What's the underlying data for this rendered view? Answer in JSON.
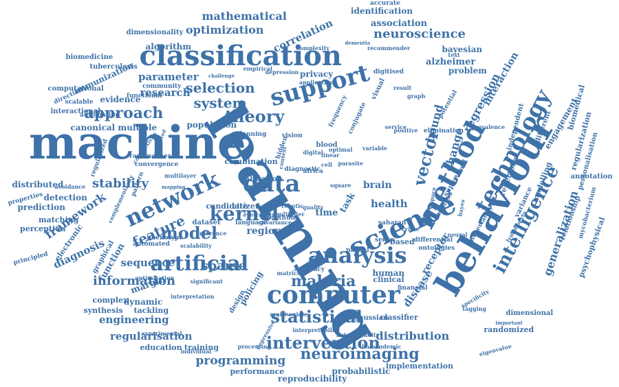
{
  "cloud": {
    "accent": "#3e72a8",
    "words": [
      {
        "text": "learning"
      },
      {
        "text": "machine"
      },
      {
        "text": "classification"
      },
      {
        "text": "behaviour"
      },
      {
        "text": "method"
      },
      {
        "text": "science"
      },
      {
        "text": "support"
      },
      {
        "text": "network"
      },
      {
        "text": "computer"
      },
      {
        "text": "analysis"
      },
      {
        "text": "artificial"
      },
      {
        "text": "technology"
      },
      {
        "text": "intelligence"
      },
      {
        "text": "data"
      },
      {
        "text": "kernel"
      },
      {
        "text": "intervention"
      },
      {
        "text": "statistical"
      },
      {
        "text": "malaria"
      },
      {
        "text": "vector"
      },
      {
        "text": "theory"
      },
      {
        "text": "neuroimaging"
      },
      {
        "text": "model"
      },
      {
        "text": "approach"
      },
      {
        "text": "selection"
      },
      {
        "text": "system"
      },
      {
        "text": "feature"
      },
      {
        "text": "information"
      },
      {
        "text": "mathematical"
      },
      {
        "text": "optimization"
      },
      {
        "text": "neuroscience"
      },
      {
        "text": "framework"
      },
      {
        "text": "regression"
      },
      {
        "text": "stability"
      },
      {
        "text": "sparse"
      },
      {
        "text": "generalization"
      },
      {
        "text": "programming"
      },
      {
        "text": "distribution"
      },
      {
        "text": "regularisation"
      },
      {
        "text": "engineering"
      },
      {
        "text": "correlation"
      },
      {
        "text": "diagnosis"
      },
      {
        "text": "change"
      },
      {
        "text": "bound"
      },
      {
        "text": "disease"
      },
      {
        "text": "health"
      },
      {
        "text": "receptor"
      },
      {
        "text": "interaction"
      },
      {
        "text": "sequence"
      },
      {
        "text": "parameter"
      },
      {
        "text": "research"
      },
      {
        "text": "association"
      },
      {
        "text": "identification"
      },
      {
        "text": "alzheimer"
      },
      {
        "text": "bayesian"
      },
      {
        "text": "problem"
      },
      {
        "text": "algorithm"
      },
      {
        "text": "immunization"
      },
      {
        "text": "evidence"
      },
      {
        "text": "canonical"
      },
      {
        "text": "multiple"
      },
      {
        "text": "distributed"
      },
      {
        "text": "detection"
      },
      {
        "text": "prediction"
      },
      {
        "text": "matching"
      },
      {
        "text": "perception"
      },
      {
        "text": "electronic"
      },
      {
        "text": "function"
      },
      {
        "text": "graphical"
      },
      {
        "text": "dynamic"
      },
      {
        "text": "complex"
      },
      {
        "text": "synthesis"
      },
      {
        "text": "tackling"
      },
      {
        "text": "margin"
      },
      {
        "text": "education"
      },
      {
        "text": "training"
      },
      {
        "text": "reproducibility"
      },
      {
        "text": "performance"
      },
      {
        "text": "probabilistic"
      },
      {
        "text": "implementation"
      },
      {
        "text": "randomized"
      },
      {
        "text": "dimensional"
      },
      {
        "text": "gaussian"
      },
      {
        "text": "classifier"
      },
      {
        "text": "human"
      },
      {
        "text": "clinical"
      },
      {
        "text": "based"
      },
      {
        "text": "modelling"
      },
      {
        "text": "engagement"
      },
      {
        "text": "biomedical"
      },
      {
        "text": "regularization"
      },
      {
        "text": "personalisation"
      },
      {
        "text": "annotation"
      },
      {
        "text": "relationship"
      },
      {
        "text": "psychophysical"
      },
      {
        "text": "mycobacterium"
      },
      {
        "text": "repertoire"
      },
      {
        "text": "independent"
      },
      {
        "text": "supervised"
      },
      {
        "text": "fairness"
      },
      {
        "text": "different"
      },
      {
        "text": "brain"
      },
      {
        "text": "time"
      },
      {
        "text": "task"
      },
      {
        "text": "region"
      },
      {
        "text": "pattern"
      },
      {
        "text": "dataset"
      },
      {
        "text": "privacy"
      },
      {
        "text": "accuracy"
      },
      {
        "text": "matrice"
      },
      {
        "text": "policing"
      },
      {
        "text": "design"
      },
      {
        "text": "accurate"
      },
      {
        "text": "dimensionality"
      },
      {
        "text": "tuberculosis"
      },
      {
        "text": "biomedicine"
      },
      {
        "text": "computational"
      },
      {
        "text": "interactional"
      },
      {
        "text": "automation"
      },
      {
        "text": "functional"
      },
      {
        "text": "scalable"
      },
      {
        "text": "community"
      },
      {
        "text": "complexity"
      },
      {
        "text": "recommender"
      },
      {
        "text": "dementia"
      },
      {
        "text": "digitised"
      },
      {
        "text": "application"
      },
      {
        "text": "depression"
      },
      {
        "text": "empirical"
      },
      {
        "text": "frequency"
      },
      {
        "text": "conjugate"
      },
      {
        "text": "visual"
      },
      {
        "text": "neural"
      },
      {
        "text": "variance"
      },
      {
        "text": "uncertainty"
      },
      {
        "text": "lymphocyte"
      },
      {
        "text": "differential"
      },
      {
        "text": "ontologies"
      },
      {
        "text": "financial"
      },
      {
        "text": "tagging"
      },
      {
        "text": "important"
      },
      {
        "text": "eigenvalue"
      },
      {
        "text": "holoendemic"
      },
      {
        "text": "interpretability"
      },
      {
        "text": "heterogeneity"
      },
      {
        "text": "multivariate"
      },
      {
        "text": "depressive"
      },
      {
        "text": "processing"
      },
      {
        "text": "individual"
      },
      {
        "text": "experimental"
      },
      {
        "text": "interpretation"
      },
      {
        "text": "optimisation"
      },
      {
        "text": "significant"
      },
      {
        "text": "scalability"
      },
      {
        "text": "automated"
      },
      {
        "text": "phenotype"
      },
      {
        "text": "principled"
      },
      {
        "text": "properties"
      },
      {
        "text": "avoidance"
      },
      {
        "text": "regularized"
      },
      {
        "text": "complementarity"
      },
      {
        "text": "rademacher"
      },
      {
        "text": "convergence"
      },
      {
        "text": "connectivity"
      },
      {
        "text": "structured"
      },
      {
        "text": "multilayer"
      },
      {
        "text": "mapping"
      },
      {
        "text": "combination"
      },
      {
        "text": "population"
      },
      {
        "text": "validation"
      },
      {
        "text": "candidate"
      },
      {
        "text": "citizen"
      },
      {
        "text": "parasite"
      },
      {
        "text": "blood"
      },
      {
        "text": "saharan"
      },
      {
        "text": "square"
      },
      {
        "text": "africa"
      },
      {
        "text": "cell"
      },
      {
        "text": "robotic"
      },
      {
        "text": "series"
      },
      {
        "text": "digital"
      },
      {
        "text": "partial"
      },
      {
        "text": "crime"
      },
      {
        "text": "graph"
      },
      {
        "text": "text"
      },
      {
        "text": "result"
      },
      {
        "text": "space"
      },
      {
        "text": "bayes"
      },
      {
        "text": "service"
      },
      {
        "text": "positive"
      },
      {
        "text": "potential"
      },
      {
        "text": "elimination"
      },
      {
        "text": "specificity"
      },
      {
        "text": "prevalence"
      },
      {
        "text": "direction"
      },
      {
        "text": "inference"
      },
      {
        "text": "language"
      },
      {
        "text": "challenge"
      },
      {
        "text": "posthum"
      },
      {
        "text": "covariance"
      },
      {
        "text": "multiplier"
      },
      {
        "text": "eyetracking"
      },
      {
        "text": "planning"
      },
      {
        "text": "context"
      },
      {
        "text": "diagnostic"
      },
      {
        "text": "vision"
      },
      {
        "text": "hidden"
      },
      {
        "text": "optimal"
      },
      {
        "text": "linear"
      },
      {
        "text": "variable"
      },
      {
        "text": "quality"
      },
      {
        "text": "study"
      },
      {
        "text": "number"
      },
      {
        "text": "policy"
      },
      {
        "text": "record"
      },
      {
        "text": "novel"
      },
      {
        "text": "target"
      },
      {
        "text": "estimate"
      }
    ]
  }
}
